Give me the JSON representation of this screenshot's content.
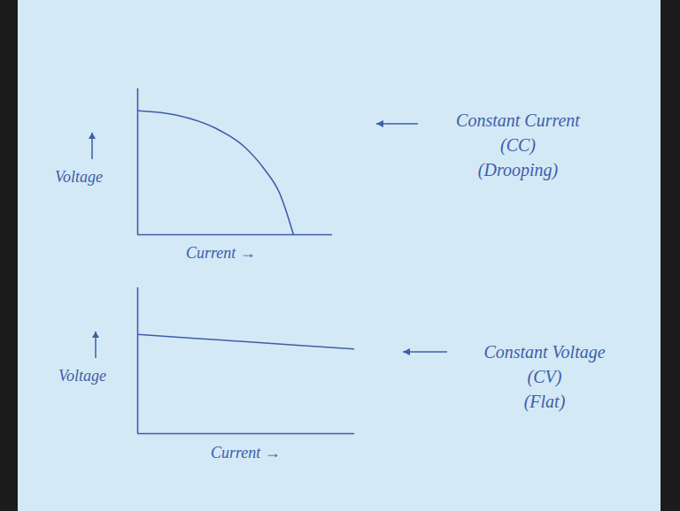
{
  "chart_data": [
    {
      "type": "line",
      "x_label": "Current →",
      "y_label": "Voltage",
      "annotation": [
        "Constant Current",
        "(CC)",
        "(Drooping)"
      ],
      "x": [
        0,
        0.2,
        0.4,
        0.55,
        0.65,
        0.73,
        0.8
      ],
      "values": [
        0.85,
        0.82,
        0.73,
        0.6,
        0.45,
        0.28,
        0
      ],
      "xlim": [
        0,
        1
      ],
      "ylim": [
        0,
        1
      ],
      "tick_labels": false,
      "color": "#3d5ea8"
    },
    {
      "type": "line",
      "x_label": "Current →",
      "y_label": "Voltage",
      "annotation": [
        "Constant Voltage",
        "(CV)",
        "(Flat)"
      ],
      "x": [
        0,
        0.5,
        1
      ],
      "values": [
        0.68,
        0.63,
        0.58
      ],
      "xlim": [
        0,
        1
      ],
      "ylim": [
        0,
        1
      ],
      "tick_labels": false,
      "color": "#3d5ea8"
    }
  ]
}
